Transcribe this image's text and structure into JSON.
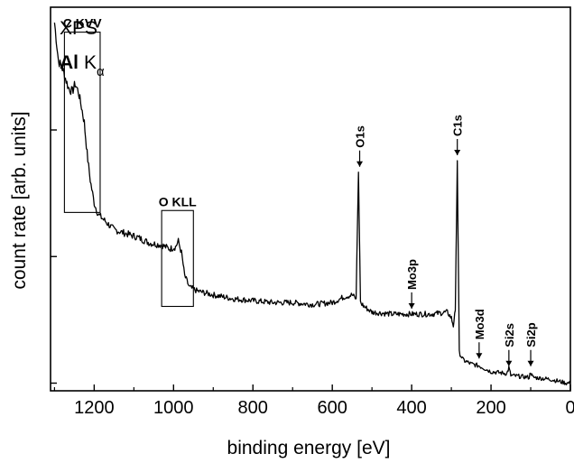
{
  "chart_data": {
    "type": "line",
    "title": "",
    "xlabel": "binding energy [eV]",
    "ylabel": "count rate [arb. units]",
    "xlim": [
      1310,
      0
    ],
    "x_reversed": true,
    "ylim": [
      0,
      1
    ],
    "x_ticks": [
      1200,
      1000,
      800,
      600,
      400,
      200,
      0
    ],
    "x_tick_labels": [
      "1200",
      "1000",
      "800",
      "600",
      "400",
      "200",
      "0"
    ],
    "y_tick_labels_shown": false,
    "inset_text": {
      "line1": "XPS",
      "element": "Al",
      "line_symbol": "K",
      "subscript": "α"
    },
    "series": [
      {
        "values": [
          [
            1300,
            0.96
          ],
          [
            1290,
            0.86
          ],
          [
            1280,
            0.84
          ],
          [
            1265,
            0.79
          ],
          [
            1255,
            0.78
          ],
          [
            1248,
            0.8
          ],
          [
            1240,
            0.78
          ],
          [
            1232,
            0.74
          ],
          [
            1225,
            0.7
          ],
          [
            1218,
            0.62
          ],
          [
            1210,
            0.55
          ],
          [
            1200,
            0.49
          ],
          [
            1190,
            0.46
          ],
          [
            1180,
            0.45
          ],
          [
            1170,
            0.44
          ],
          [
            1150,
            0.42
          ],
          [
            1120,
            0.41
          ],
          [
            1090,
            0.4
          ],
          [
            1060,
            0.385
          ],
          [
            1030,
            0.38
          ],
          [
            1010,
            0.37
          ],
          [
            995,
            0.375
          ],
          [
            988,
            0.39
          ],
          [
            980,
            0.36
          ],
          [
            972,
            0.3
          ],
          [
            960,
            0.27
          ],
          [
            940,
            0.26
          ],
          [
            900,
            0.25
          ],
          [
            850,
            0.24
          ],
          [
            800,
            0.235
          ],
          [
            750,
            0.23
          ],
          [
            700,
            0.23
          ],
          [
            650,
            0.225
          ],
          [
            600,
            0.23
          ],
          [
            570,
            0.245
          ],
          [
            550,
            0.25
          ],
          [
            540,
            0.24
          ],
          [
            534,
            0.57
          ],
          [
            529,
            0.23
          ],
          [
            520,
            0.22
          ],
          [
            500,
            0.205
          ],
          [
            450,
            0.2
          ],
          [
            400,
            0.2
          ],
          [
            350,
            0.2
          ],
          [
            310,
            0.205
          ],
          [
            300,
            0.19
          ],
          [
            295,
            0.17
          ],
          [
            290,
            0.21
          ],
          [
            285,
            0.6
          ],
          [
            280,
            0.1
          ],
          [
            270,
            0.08
          ],
          [
            250,
            0.07
          ],
          [
            230,
            0.065
          ],
          [
            200,
            0.05
          ],
          [
            160,
            0.045
          ],
          [
            155,
            0.06
          ],
          [
            150,
            0.04
          ],
          [
            104,
            0.035
          ],
          [
            100,
            0.05
          ],
          [
            95,
            0.035
          ],
          [
            50,
            0.03
          ],
          [
            10,
            0.02
          ],
          [
            0,
            0.02
          ]
        ]
      }
    ],
    "peak_labels": [
      {
        "text": "O1s",
        "x": 531,
        "y": 0.57
      },
      {
        "text": "C1s",
        "x": 285,
        "y": 0.6
      },
      {
        "text": "Mo3p",
        "x": 400,
        "y": 0.2
      },
      {
        "text": "Mo3d",
        "x": 230,
        "y": 0.07
      },
      {
        "text": "Si2s",
        "x": 155,
        "y": 0.05
      },
      {
        "text": "Si2p",
        "x": 100,
        "y": 0.05
      }
    ],
    "region_boxes": [
      {
        "label": "C KVV",
        "x_range": [
          1275,
          1185
        ],
        "y_range": [
          0.465,
          0.935
        ]
      },
      {
        "label": "O KLL",
        "x_range": [
          1030,
          950
        ],
        "y_range": [
          0.22,
          0.47
        ]
      }
    ],
    "grid": false,
    "legend": "none"
  }
}
